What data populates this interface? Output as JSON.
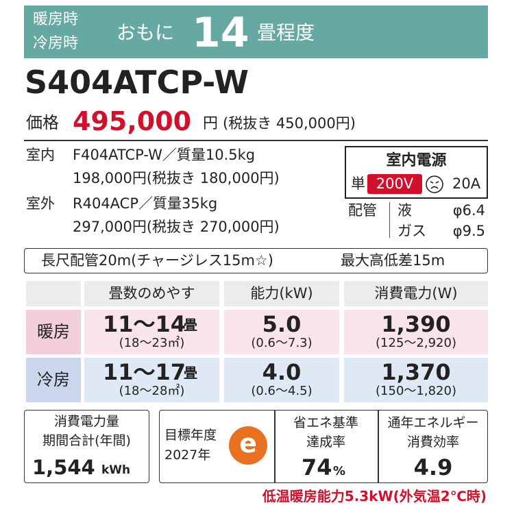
{
  "header": {
    "line1": "暖房時",
    "line2": "冷房時",
    "lead": "おもに",
    "size": "14",
    "unit": "畳程度"
  },
  "model": "S404ATCP-W",
  "price": {
    "label": "価格",
    "value": "495,000",
    "unit": "円",
    "note": "(税抜き 450,000円)"
  },
  "units": [
    {
      "label": "室内",
      "model": "F404ATCP-W／質量10.5kg",
      "price": "198,000円(税抜き 180,000円)"
    },
    {
      "label": "室外",
      "model": "R404ACP／質量35kg",
      "price": "297,000円(税抜き 270,000円)"
    }
  ],
  "power": {
    "title": "室内電源",
    "phase": "単",
    "voltage": "200V",
    "amp": "20A"
  },
  "piping": {
    "label": "配管",
    "liquid": "液",
    "liquid_size": "φ6.4",
    "gas": "ガス",
    "gas_size": "φ9.5"
  },
  "pipe_note": {
    "left": "長尺配管20m(チャージレス15m☆)",
    "right": "最大高低差15m"
  },
  "table": {
    "headers": [
      "畳数のめやす",
      "能力(kW)",
      "消費電力(W)"
    ],
    "rows": [
      {
        "label": "暖房",
        "tatami": "11～14",
        "tatami_unit": "畳",
        "tatami_range": "(18～23㎡)",
        "capacity": "5.0",
        "capacity_range": "(0.6～7.3)",
        "power": "1,390",
        "power_range": "(125～2,920)"
      },
      {
        "label": "冷房",
        "tatami": "11～17",
        "tatami_unit": "畳",
        "tatami_range": "(18～28㎡)",
        "capacity": "4.0",
        "capacity_range": "(0.6～4.5)",
        "power": "1,370",
        "power_range": "(150～1,820)"
      }
    ]
  },
  "annual": {
    "line1": "消費電力量",
    "line2": "期間合計(年間)",
    "value": "1,544",
    "unit": "kWh"
  },
  "target": {
    "line1": "目標年度",
    "line2": "2027年",
    "icon": "e"
  },
  "achievement": {
    "line1": "省エネ基準",
    "line2": "達成率",
    "value": "74",
    "unit": "%"
  },
  "apf": {
    "line1": "通年エネルギー",
    "line2": "消費効率",
    "value": "4.9"
  },
  "footer": "低温暖房能力5.3kW(外気温2℃時)"
}
